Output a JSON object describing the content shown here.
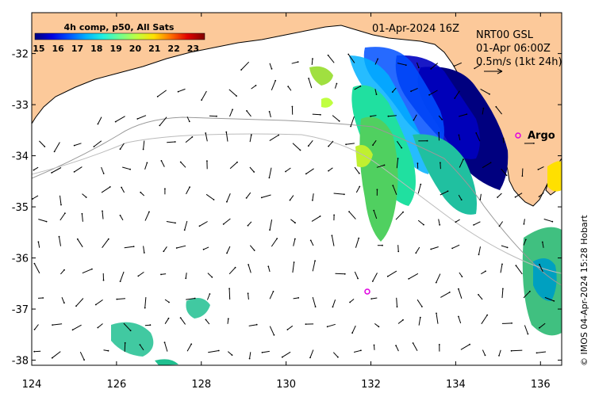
{
  "map": {
    "date_label": "01-Apr-2024 16Z",
    "current_product": "NRT00 GSL",
    "current_time": "01-Apr 06:00Z",
    "scale_label": "0.5m/s (1kt 24h)",
    "credit": "© IMOS 04-Apr-2024 15:28 Hobart",
    "x_ticks": [
      "124",
      "126",
      "128",
      "130",
      "132",
      "134",
      "136"
    ],
    "y_ticks": [
      "-32",
      "-33",
      "-34",
      "-35",
      "-36",
      "-37",
      "-38"
    ],
    "x_range": [
      124,
      136.5
    ],
    "y_range": [
      -38.1,
      -31.2
    ],
    "land_color": "#fcc99a",
    "colorbar": {
      "title": "4h comp, p50, All Sats",
      "ticks": [
        "15",
        "16",
        "17",
        "18",
        "19",
        "20",
        "21",
        "22",
        "23"
      ],
      "range": [
        14.8,
        23.6
      ],
      "colors": [
        "#00007f",
        "#0000e0",
        "#0050ff",
        "#00b0ff",
        "#20f0e0",
        "#70ff90",
        "#c0ff40",
        "#ffe000",
        "#ff7000",
        "#e00000",
        "#800000"
      ]
    },
    "argo_floats": [
      {
        "label": "Argo",
        "lon": 135.4,
        "lat": -33.65
      },
      {
        "label": "",
        "lon": 131.85,
        "lat": -36.65
      }
    ]
  }
}
